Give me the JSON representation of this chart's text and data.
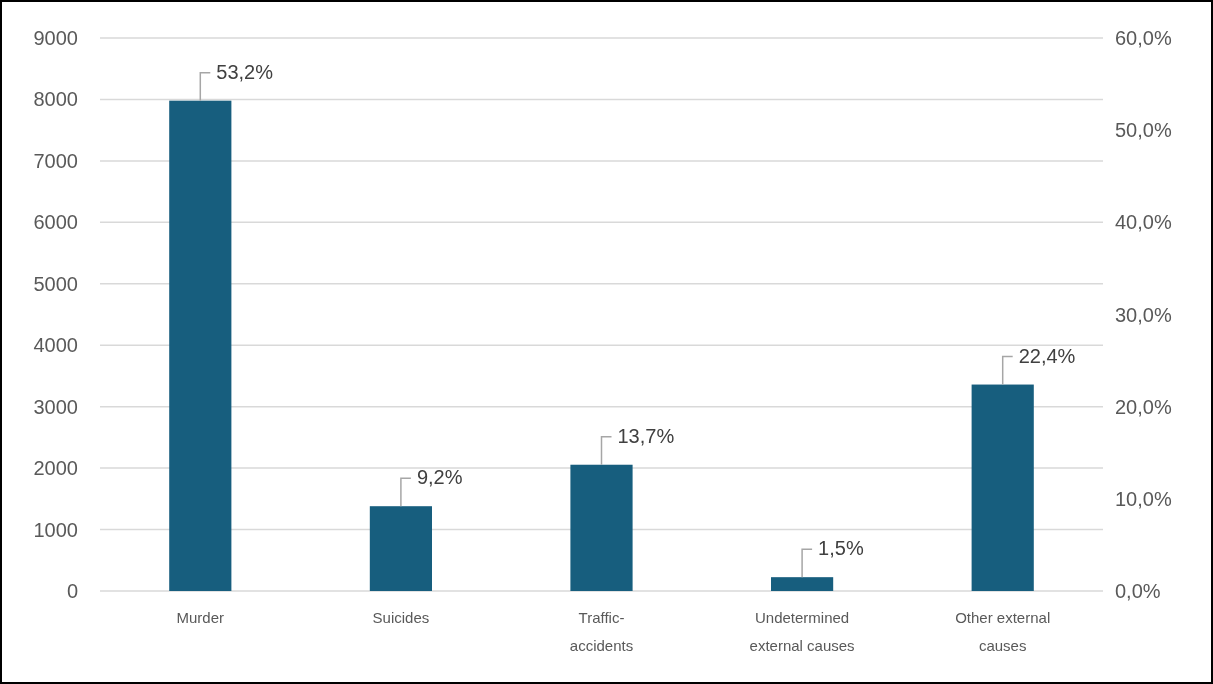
{
  "chart_data": {
    "type": "bar",
    "categories": [
      "Murder",
      "Suicides",
      "Traffic-\naccidents",
      "Undetermined\nexternal causes",
      "Other external\ncauses"
    ],
    "series": [
      {
        "color": "#175e7e",
        "axis": "y2",
        "values": [
          53.2,
          9.2,
          13.7,
          1.5,
          22.4
        ],
        "value_labels": [
          "53,2%",
          "9,2%",
          "13,7%",
          "1,5%",
          "22,4%"
        ]
      }
    ],
    "ylim": [
      0,
      9000
    ],
    "yticks": [
      0,
      1000,
      2000,
      3000,
      4000,
      5000,
      6000,
      7000,
      8000,
      9000
    ],
    "y2lim": [
      0,
      60
    ],
    "y2ticks": [
      {
        "value": 0,
        "label": "0,0%"
      },
      {
        "value": 10,
        "label": "10,0%"
      },
      {
        "value": 20,
        "label": "20,0%"
      },
      {
        "value": 30,
        "label": "30,0%"
      },
      {
        "value": 40,
        "label": "40,0%"
      },
      {
        "value": 50,
        "label": "50,0%"
      },
      {
        "value": 60,
        "label": "60,0%"
      }
    ],
    "grid": "y"
  }
}
